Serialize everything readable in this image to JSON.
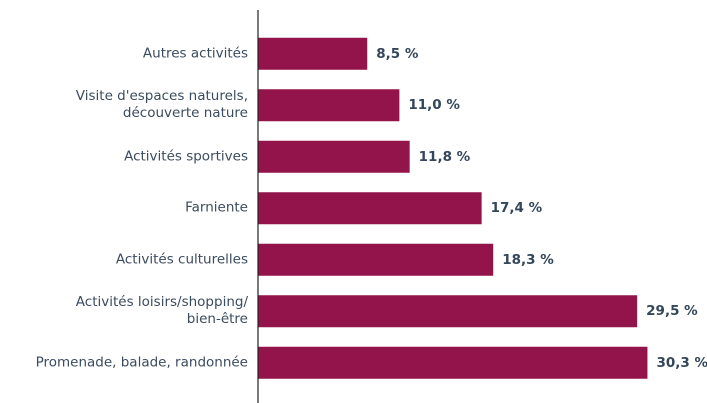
{
  "chart_data": {
    "type": "bar",
    "orientation": "horizontal",
    "categories": [
      "Autres activités",
      "Visite d'espaces naturels,\ndécouverte nature",
      "Activités sportives",
      "Farniente",
      "Activités culturelles",
      "Activités loisirs/shopping/\nbien-être",
      "Promenade, balade, randonnée"
    ],
    "values": [
      8.5,
      11.0,
      11.8,
      17.4,
      18.3,
      29.5,
      30.3
    ],
    "value_labels": [
      "8,5 %",
      "11,0 %",
      "11,8 %",
      "17,4 %",
      "18,3 %",
      "29,5 %",
      "30,3 %"
    ],
    "color": "#93144a",
    "xlim": [
      0,
      34
    ]
  }
}
